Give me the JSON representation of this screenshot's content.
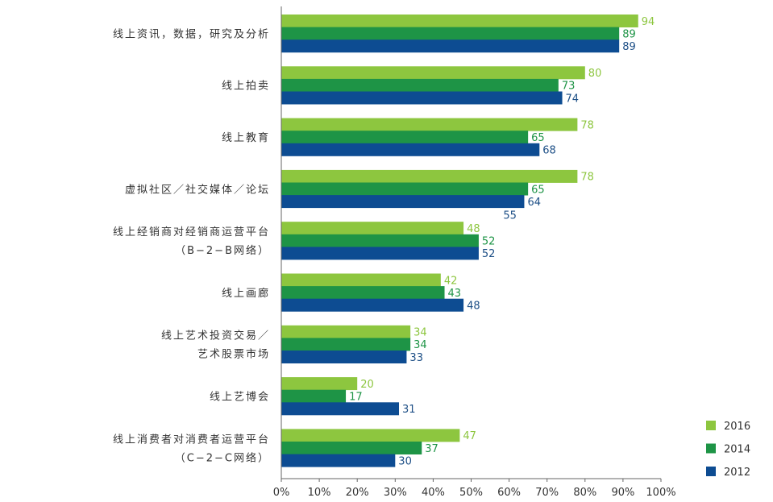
{
  "chart_data": {
    "type": "bar",
    "orientation": "horizontal",
    "categories": [
      [
        "线上资讯，数据，研究及分析"
      ],
      [
        "线上拍卖"
      ],
      [
        "线上教育"
      ],
      [
        "虚拟社区／社交媒体／论坛"
      ],
      [
        "线上经销商对经销商运营平台",
        "（B−2−B网络）"
      ],
      [
        "线上画廊"
      ],
      [
        "线上艺术投资交易／",
        "艺术股票市场"
      ],
      [
        "线上艺博会"
      ],
      [
        "线上消费者对消费者运营平台",
        "（C−2−C网络）"
      ]
    ],
    "series": [
      {
        "name": "2016",
        "color": "#8dc63f",
        "label_color": "#8dc63f",
        "values": [
          94,
          80,
          78,
          78,
          48,
          42,
          34,
          20,
          47
        ]
      },
      {
        "name": "2014",
        "color": "#1e9446",
        "label_color": "#1e9446",
        "values": [
          89,
          73,
          65,
          65,
          52,
          43,
          34,
          17,
          37
        ]
      },
      {
        "name": "2012",
        "color": "#0d4c92",
        "label_color": "#1d4f86",
        "values": [
          89,
          74,
          68,
          64,
          52,
          48,
          33,
          31,
          30
        ]
      }
    ],
    "extra_labels": [
      {
        "category_index": 3,
        "text": "55",
        "color": "#1d4f86"
      }
    ],
    "xlim": [
      0,
      100
    ],
    "xticks": [
      "0%",
      "10%",
      "20%",
      "30%",
      "40%",
      "50%",
      "60%",
      "70%",
      "80%",
      "90%",
      "100%"
    ],
    "title": "",
    "xlabel": "",
    "ylabel": "",
    "grid": false,
    "legend_position": "bottom-right",
    "legend_order": [
      "2016",
      "2014",
      "2012"
    ]
  }
}
